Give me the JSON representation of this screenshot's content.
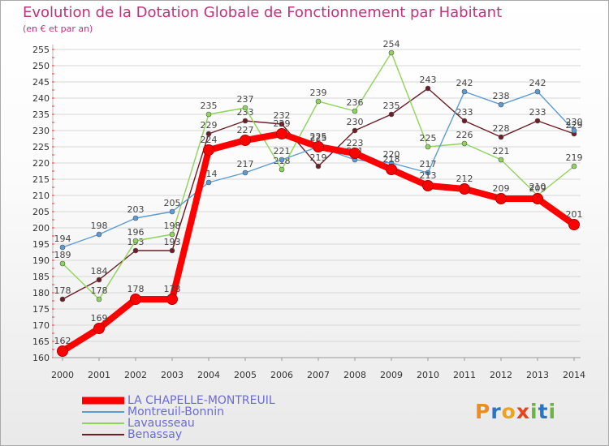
{
  "header": {
    "title": "Evolution de la Dotation Globale de Fonctionnement par Habitant",
    "subtitle": "(en € et par an)"
  },
  "chart_data": {
    "type": "line",
    "x": [
      2000,
      2001,
      2002,
      2003,
      2004,
      2005,
      2006,
      2007,
      2008,
      2009,
      2010,
      2011,
      2012,
      2013,
      2014
    ],
    "ylim": [
      160,
      255
    ],
    "yticks": [
      160,
      165,
      170,
      175,
      180,
      185,
      190,
      195,
      200,
      205,
      210,
      215,
      220,
      225,
      230,
      235,
      240,
      245,
      250,
      255
    ],
    "grid": true,
    "legend_position": "bottom-left",
    "series": [
      {
        "name": "Benassay",
        "color": "#6e1c26",
        "values": [
          178,
          184,
          193,
          193,
          229,
          233,
          232,
          219,
          230,
          235,
          243,
          233,
          228,
          233,
          229
        ]
      },
      {
        "name": "Lavausseau",
        "color": "#8fd45a",
        "values": [
          189,
          178,
          196,
          198,
          235,
          237,
          218,
          239,
          236,
          254,
          225,
          226,
          221,
          210,
          219
        ]
      },
      {
        "name": "Montreuil-Bonnin",
        "color": "#5b9bd5",
        "values": [
          194,
          198,
          203,
          205,
          214,
          217,
          221,
          225,
          221,
          220,
          217,
          242,
          238,
          242,
          230
        ]
      },
      {
        "name": "LA CHAPELLE-MONTREUIL",
        "color": "#ff0000",
        "values": [
          162,
          169,
          178,
          178,
          224,
          227,
          229,
          225,
          223,
          218,
          213,
          212,
          209,
          209,
          201
        ]
      }
    ]
  },
  "legend": {
    "items": [
      {
        "label": "LA CHAPELLE-MONTREUIL",
        "color": "#ff0000"
      },
      {
        "label": "Montreuil-Bonnin",
        "color": "#5b9bd5"
      },
      {
        "label": "Lavausseau",
        "color": "#8fd45a"
      },
      {
        "label": "Benassay",
        "color": "#6e1c26"
      }
    ]
  },
  "logo": {
    "letters": [
      "P",
      "r",
      "o",
      "x",
      "i",
      "t",
      "i"
    ],
    "colors": [
      "#f08c1e",
      "#2a74c4",
      "#f0a21e",
      "#e8421e",
      "#6cb33f",
      "#2a74c4",
      "#6cb33f"
    ]
  }
}
